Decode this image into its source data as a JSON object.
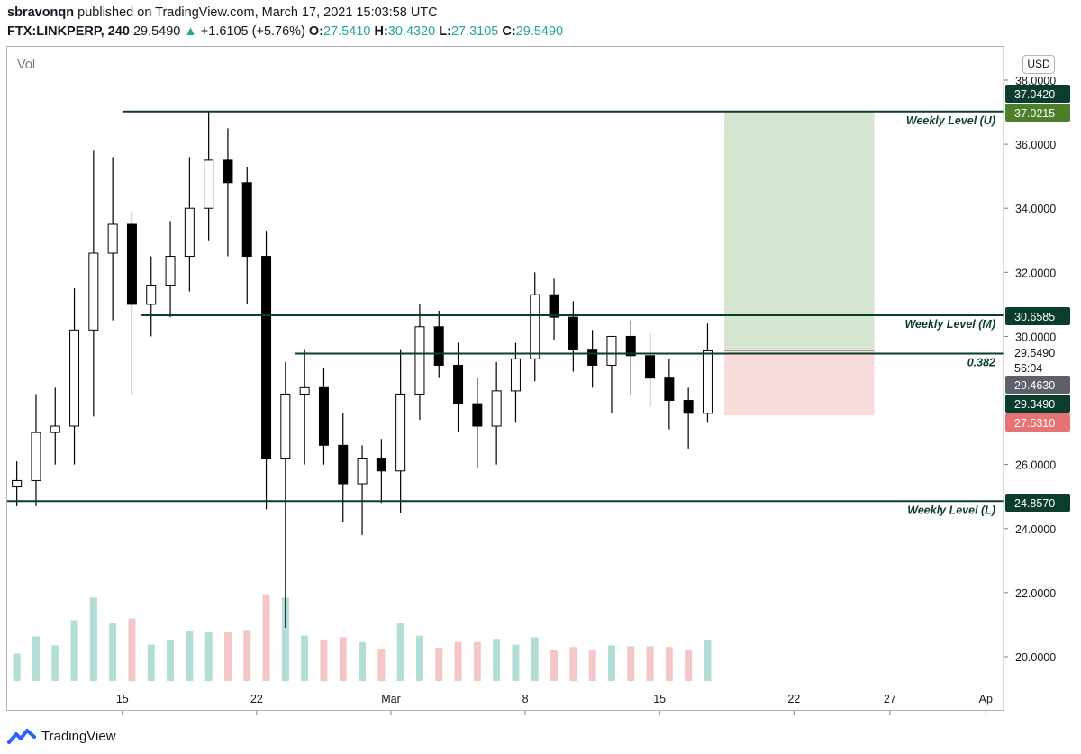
{
  "header": {
    "author": "sbravonqn",
    "published_text": "published on TradingView.com, March 17, 2021 15:03:58 UTC",
    "symbol": "FTX:LINKPERP, 240",
    "last": "29.5490",
    "arrow": "▲",
    "change": "+1.6105 (+5.76%)",
    "o_label": "O:",
    "o": "27.5410",
    "h_label": "H:",
    "h": "30.4320",
    "l_label": "L:",
    "l": "27.3105",
    "c_label": "C:",
    "c": "29.5490"
  },
  "vol_label": "Vol",
  "currency_button": "USD",
  "footer": {
    "brand": "TradingView"
  },
  "colors": {
    "level_line": "#0b3d2e",
    "tp_zone": "#d6e5d0",
    "sl_zone": "#f8dcdc",
    "candle": "#000000",
    "vol_up": "#9fd6cd",
    "vol_down": "#f0b9b9",
    "dark_tag": "#0b3d2e",
    "green_tag": "#4d7f2a",
    "red_tag": "#e57373",
    "grey_tag": "#5d606b"
  },
  "price_axis": {
    "ticks": [
      "38.0000",
      "36.0000",
      "34.0000",
      "32.0000",
      "30.0000",
      "26.0000",
      "24.0000",
      "22.0000",
      "20.0000"
    ],
    "tags": [
      {
        "text": "37.0420",
        "style": "dark"
      },
      {
        "text": "37.0215",
        "style": "green"
      },
      {
        "text": "30.6585",
        "style": "dark"
      },
      {
        "text": "29.5490",
        "style": "plain"
      },
      {
        "text": "56:04",
        "style": "plain"
      },
      {
        "text": "29.4630",
        "style": "grey"
      },
      {
        "text": "29.3490",
        "style": "dark"
      },
      {
        "text": "27.5310",
        "style": "red"
      },
      {
        "text": "24.8570",
        "style": "dark"
      }
    ]
  },
  "time_axis": {
    "ticks": [
      "15",
      "22",
      "Mar",
      "8",
      "15",
      "22",
      "27",
      "Ap"
    ]
  },
  "level_labels": {
    "upper": "Weekly Level (U)",
    "middle": "Weekly Level (M)",
    "fib": "0.382",
    "lower": "Weekly Level (L)"
  },
  "chart_data": {
    "type": "candlestick",
    "symbol": "FTX:LINKPERP",
    "timeframe": "240",
    "ylim": [
      19.0,
      38.5
    ],
    "x_range": [
      "2021-02-09",
      "2021-04-01"
    ],
    "horizontal_levels": [
      {
        "label": "Weekly Level (U)",
        "price": 37.0215
      },
      {
        "label": "Weekly Level (M)",
        "price": 30.6585
      },
      {
        "label": "0.382",
        "price": 29.463
      },
      {
        "label": "Weekly Level (L)",
        "price": 24.857
      }
    ],
    "position": {
      "type": "long",
      "entry": 29.549,
      "target": 37.0215,
      "stop": 27.531,
      "start_date": "2021-03-18",
      "end_date": "2021-03-26"
    },
    "x": [
      "02-09",
      "02-10",
      "02-11",
      "02-12",
      "02-13",
      "02-14",
      "02-15",
      "02-16",
      "02-17",
      "02-18",
      "02-19",
      "02-20",
      "02-21",
      "02-22",
      "02-23",
      "02-24",
      "02-25",
      "02-26",
      "02-27",
      "02-28",
      "03-01",
      "03-02",
      "03-03",
      "03-04",
      "03-05",
      "03-06",
      "03-07",
      "03-08",
      "03-09",
      "03-10",
      "03-11",
      "03-12",
      "03-13",
      "03-14",
      "03-15",
      "03-16",
      "03-17"
    ],
    "open": [
      25.3,
      25.5,
      27.0,
      27.2,
      30.2,
      32.6,
      33.5,
      31.0,
      31.6,
      32.5,
      34.0,
      35.5,
      34.8,
      32.5,
      26.2,
      28.2,
      28.4,
      26.6,
      25.4,
      26.2,
      25.8,
      28.2,
      30.3,
      29.1,
      27.9,
      27.2,
      28.3,
      29.3,
      31.3,
      30.6,
      29.6,
      29.1,
      30.0,
      29.4,
      28.7,
      28.0,
      27.6
    ],
    "high": [
      26.1,
      28.2,
      28.4,
      31.5,
      35.8,
      35.6,
      33.9,
      32.5,
      33.6,
      35.6,
      37.0,
      36.5,
      35.3,
      33.3,
      29.2,
      29.6,
      29.0,
      27.6,
      26.6,
      26.8,
      29.6,
      31.0,
      30.8,
      29.8,
      28.7,
      29.2,
      29.8,
      32.0,
      31.8,
      31.1,
      30.2,
      30.0,
      30.5,
      30.1,
      29.3,
      28.4,
      30.4
    ],
    "low": [
      24.7,
      24.7,
      26.0,
      26.0,
      27.5,
      30.5,
      28.2,
      30.0,
      30.6,
      31.4,
      33.0,
      32.5,
      31.0,
      24.6,
      20.9,
      26.0,
      26.0,
      24.2,
      23.8,
      24.8,
      24.5,
      27.4,
      28.7,
      27.0,
      25.9,
      26.0,
      27.3,
      28.6,
      29.9,
      28.9,
      28.4,
      27.6,
      28.2,
      27.8,
      27.1,
      26.5,
      27.3
    ],
    "close": [
      25.5,
      27.0,
      27.2,
      30.2,
      32.6,
      33.5,
      31.0,
      31.6,
      32.5,
      34.0,
      35.5,
      34.8,
      32.5,
      26.2,
      28.2,
      28.4,
      26.6,
      25.4,
      26.2,
      25.8,
      28.2,
      30.3,
      29.1,
      27.9,
      27.2,
      28.3,
      29.3,
      31.3,
      30.6,
      29.6,
      29.1,
      30.0,
      29.4,
      28.7,
      28.0,
      27.6,
      29.549
    ]
  }
}
